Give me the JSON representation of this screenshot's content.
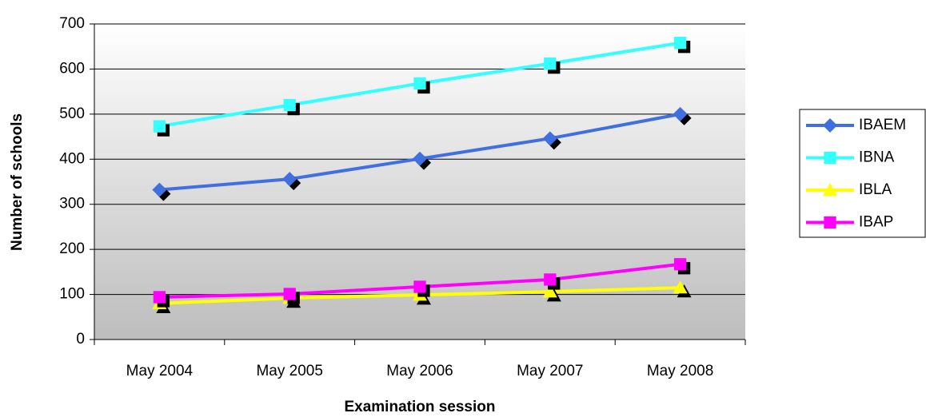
{
  "chart_data": {
    "type": "line",
    "x_label": "Examination session",
    "y_label": "Number of schools",
    "categories": [
      "May 2004",
      "May 2005",
      "May 2006",
      "May 2007",
      "May 2008"
    ],
    "series": [
      {
        "name": "IBAEM",
        "color": "#3f6fe0",
        "marker": "diamond",
        "values": [
          332,
          356,
          401,
          446,
          500
        ]
      },
      {
        "name": "IBNA",
        "color": "#33ffff",
        "marker": "square",
        "values": [
          473,
          520,
          568,
          612,
          658
        ]
      },
      {
        "name": "IBLA",
        "color": "#ffff00",
        "marker": "triangle",
        "values": [
          80,
          92,
          99,
          106,
          115
        ]
      },
      {
        "name": "IBAP",
        "color": "#ff00ff",
        "marker": "square",
        "values": [
          94,
          101,
          117,
          133,
          167
        ]
      }
    ],
    "ylim": [
      0,
      700
    ],
    "yticks": [
      0,
      100,
      200,
      300,
      400,
      500,
      600,
      700
    ],
    "grid": true,
    "legend": "right"
  }
}
